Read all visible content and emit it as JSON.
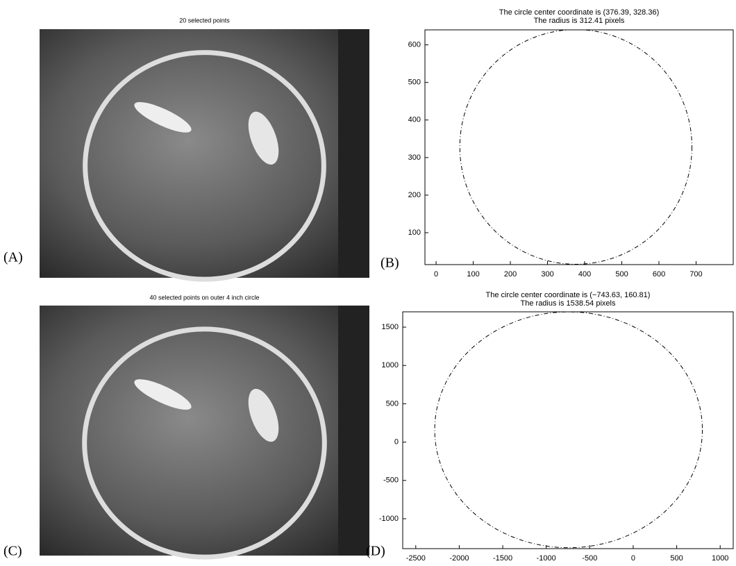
{
  "chart_data": [
    {
      "type": "image",
      "panel": "(A)",
      "title": "20 selected points"
    },
    {
      "type": "circle",
      "panel": "(B)",
      "title": "The circle center coordinate is (376.39, 328.36)",
      "subtitle": "The radius is 312.41 pixels",
      "center": [
        376.39,
        328.36
      ],
      "radius": 312.41,
      "xlim": [
        -30,
        800
      ],
      "xticks": [
        0,
        100,
        200,
        300,
        400,
        500,
        600,
        700
      ],
      "ylim": [
        15,
        640
      ],
      "yticks": [
        100,
        200,
        300,
        400,
        500,
        600
      ]
    },
    {
      "type": "image",
      "panel": "(C)",
      "title": "40 selected points on outer 4 inch circle"
    },
    {
      "type": "circle",
      "panel": "(D)",
      "title": "The circle center coordinate is (−743.63, 160.81)",
      "subtitle": "The radius is 1538.54 pixels",
      "center": [
        -743.63,
        160.81
      ],
      "radius": 1538.54,
      "xlim": [
        -2650,
        1150
      ],
      "xticks": [
        -2500,
        -2000,
        -1500,
        -1000,
        -500,
        0,
        500,
        1000
      ],
      "ylim": [
        -1390,
        1700
      ],
      "yticks": [
        -1000,
        -500,
        0,
        500,
        1000,
        1500
      ]
    }
  ]
}
